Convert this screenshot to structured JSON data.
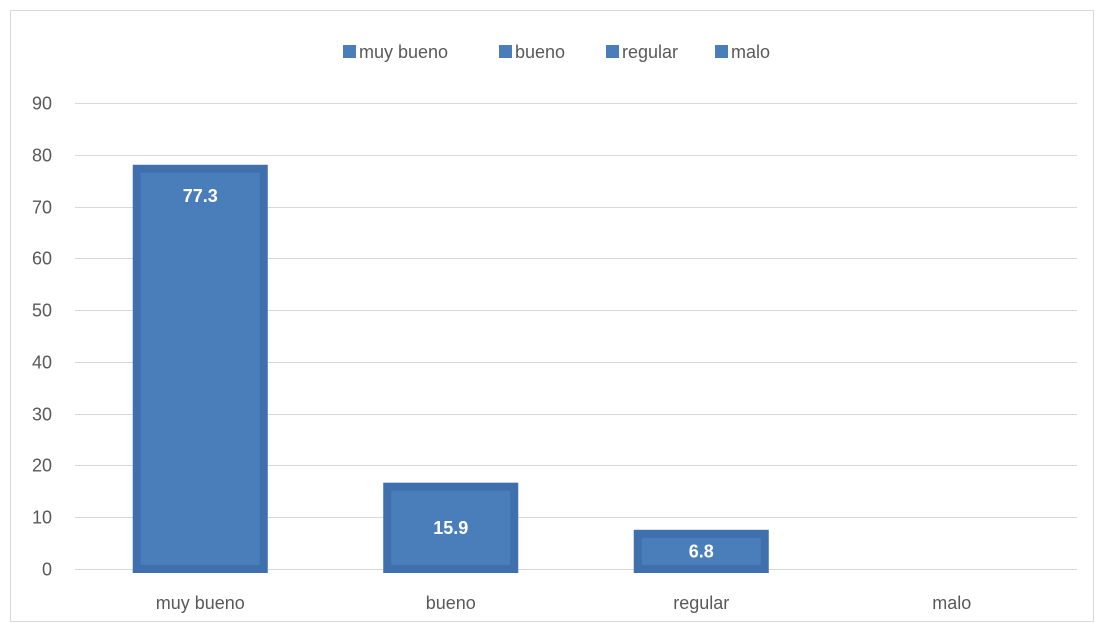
{
  "chart_data": {
    "type": "bar",
    "categories": [
      "muy bueno",
      "bueno",
      "regular",
      "malo"
    ],
    "values": [
      77.3,
      15.9,
      6.8,
      0
    ],
    "data_labels": [
      "77.3",
      "15.9",
      "6.8",
      ""
    ],
    "legend": {
      "placement": "top",
      "entries": [
        "muy bueno",
        "bueno",
        "regular",
        "malo"
      ]
    },
    "title": "",
    "xlabel": "",
    "ylabel": "",
    "ylim": [
      0,
      90
    ],
    "yticks": [
      0,
      10,
      20,
      30,
      40,
      50,
      60,
      70,
      80,
      90
    ],
    "grid": true
  },
  "colors": {
    "bar_fill": "#4a7ebb",
    "bar_border": "#3f6fac",
    "grid": "#d9d9d9",
    "text": "#595959",
    "data_label": "#ffffff"
  }
}
